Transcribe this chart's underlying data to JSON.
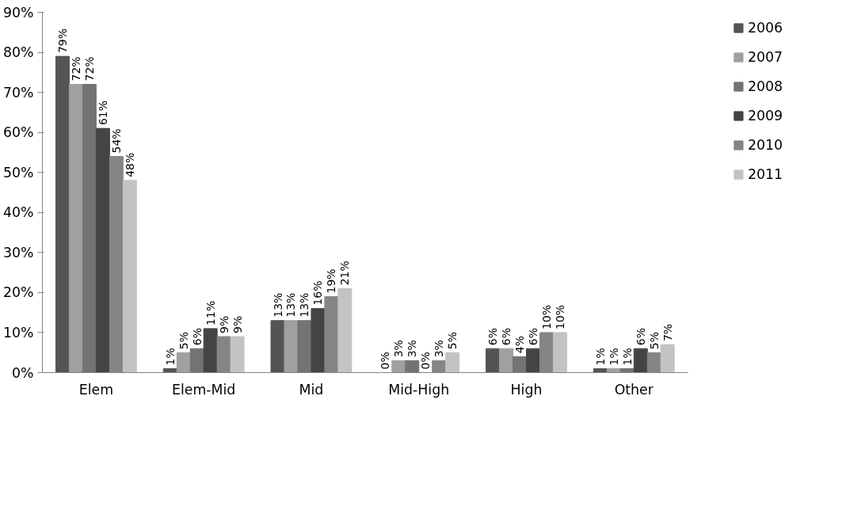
{
  "chart_data": {
    "type": "bar",
    "categories": [
      "Elem",
      "Elem-Mid",
      "Mid",
      "Mid-High",
      "High",
      "Other"
    ],
    "series": [
      {
        "name": "2006",
        "color": "#545454",
        "values": [
          79,
          1,
          13,
          0,
          6,
          1
        ],
        "value_labels": [
          "79%",
          "1%",
          "13%",
          "0%",
          "6%",
          "1%"
        ]
      },
      {
        "name": "2007",
        "color": "#a0a0a0",
        "values": [
          72,
          5,
          13,
          3,
          6,
          1
        ],
        "value_labels": [
          "72%",
          "5%",
          "13%",
          "3%",
          "6%",
          "1%"
        ]
      },
      {
        "name": "2008",
        "color": "#737373",
        "values": [
          72,
          6,
          13,
          3,
          4,
          1
        ],
        "value_labels": [
          "72%",
          "6%",
          "13%",
          "3%",
          "4%",
          "1%"
        ]
      },
      {
        "name": "2009",
        "color": "#444444",
        "values": [
          61,
          11,
          16,
          0,
          6,
          6
        ],
        "value_labels": [
          "61%",
          "11%",
          "16%",
          "0%",
          "6%",
          "6%"
        ]
      },
      {
        "name": "2010",
        "color": "#858585",
        "values": [
          54,
          9,
          19,
          3,
          10,
          5
        ],
        "value_labels": [
          "54%",
          "9%",
          "19%",
          "3%",
          "10%",
          "5%"
        ]
      },
      {
        "name": "2011",
        "color": "#c3c3c3",
        "values": [
          48,
          9,
          21,
          5,
          10,
          7
        ],
        "value_labels": [
          "48%",
          "9%",
          "21%",
          "5%",
          "10%",
          "7%"
        ]
      }
    ],
    "ylim": [
      0,
      90
    ],
    "yticks": [
      {
        "value": 0,
        "label": "0%"
      },
      {
        "value": 10,
        "label": "10%"
      },
      {
        "value": 20,
        "label": "20%"
      },
      {
        "value": 30,
        "label": "30%"
      },
      {
        "value": 40,
        "label": "40%"
      },
      {
        "value": 50,
        "label": "50%"
      },
      {
        "value": 60,
        "label": "60%"
      },
      {
        "value": 70,
        "label": "70%"
      },
      {
        "value": 80,
        "label": "80%"
      },
      {
        "value": 90,
        "label": "90%"
      }
    ],
    "grid": false,
    "legend": "right"
  }
}
